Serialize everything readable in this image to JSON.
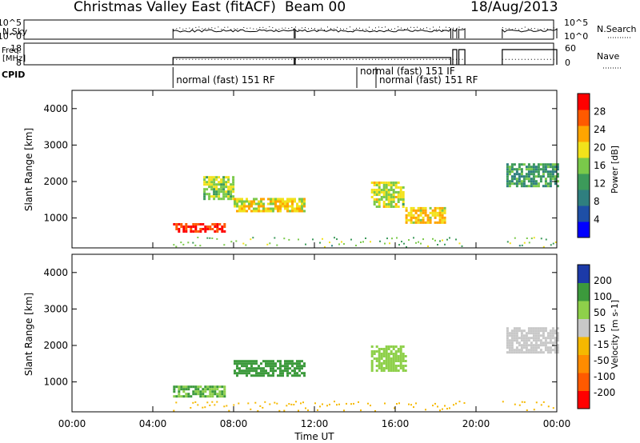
{
  "header": {
    "title": "Christmas Valley East (fitACF)",
    "beam": "Beam 00",
    "date": "18/Aug/2013"
  },
  "colors": {
    "axis": "#000000",
    "power_scale": [
      "#0000ff",
      "#1e4fa6",
      "#2f7f7f",
      "#3c9a5a",
      "#7ac94a",
      "#f2e21b",
      "#ffa500",
      "#ff5a00",
      "#ff0000"
    ],
    "velocity_scale": [
      "#1c3aa8",
      "#3c9a3c",
      "#8ed04a",
      "#c8c8c8",
      "#f5b800",
      "#ff8c00",
      "#ff5a00",
      "#ff0000"
    ]
  },
  "chart_data": [
    {
      "type": "line",
      "name": "N.Sky / N.Search",
      "left_label": "N.Sky",
      "right_label": "N.Search",
      "left_ticks": [
        "10^5",
        "10^0"
      ],
      "right_ticks": [
        "10^5",
        "10^0"
      ],
      "x_range_hours": [
        0,
        24
      ],
      "segments": [
        [
          5.0,
          11.0
        ],
        [
          11.05,
          18.75
        ],
        [
          18.85,
          19.05
        ],
        [
          19.15,
          19.45
        ],
        [
          21.3,
          24.0
        ]
      ]
    },
    {
      "type": "line",
      "name": "Freq / Nave",
      "left_label": "Freq.\n[MHz]",
      "left_ticks": [
        "18",
        "8"
      ],
      "right_label": "Nave",
      "right_ticks": [
        "60",
        "0"
      ],
      "freq_level_mhz": 10.5,
      "nave_level": 48,
      "segments": [
        [
          5.0,
          11.0
        ],
        [
          11.05,
          18.75
        ],
        [
          18.85,
          19.05
        ],
        [
          19.15,
          19.45
        ],
        [
          21.3,
          24.0
        ]
      ]
    },
    {
      "type": "table",
      "name": "CPID",
      "label": "CPID",
      "entries": [
        {
          "start": 5.0,
          "text": "normal (fast) 151 RF"
        },
        {
          "start": 14.1,
          "text": "normal (fast) 151 IF"
        },
        {
          "start": 15.05,
          "text": "normal (fast) 151 RF"
        }
      ]
    },
    {
      "type": "heatmap",
      "name": "Power",
      "ylabel": "Slant Range [km]",
      "ylim": [
        180,
        4500
      ],
      "yticks": [
        1000,
        2000,
        3000,
        4000
      ],
      "colorbar": {
        "label": "Power [dB]",
        "ticks": [
          4,
          8,
          12,
          16,
          20,
          24,
          28
        ],
        "range": [
          0,
          32
        ]
      },
      "features": [
        {
          "t": [
            5.0,
            7.5
          ],
          "r": [
            640,
            860
          ],
          "value": 29
        },
        {
          "t": [
            6.5,
            8.0
          ],
          "r": [
            1500,
            2150
          ],
          "value": 17
        },
        {
          "t": [
            8.0,
            11.5
          ],
          "r": [
            1180,
            1550
          ],
          "value": 20
        },
        {
          "t": [
            14.8,
            16.4
          ],
          "r": [
            1300,
            2000
          ],
          "value": 18
        },
        {
          "t": [
            16.5,
            18.5
          ],
          "r": [
            850,
            1300
          ],
          "value": 21
        },
        {
          "t": [
            21.5,
            24.0
          ],
          "r": [
            1900,
            2500
          ],
          "value": 12
        }
      ]
    },
    {
      "type": "heatmap",
      "name": "Velocity",
      "ylabel": "Slant Range [km]",
      "ylim": [
        180,
        4500
      ],
      "yticks": [
        1000,
        2000,
        3000,
        4000
      ],
      "colorbar": {
        "label": "Velocity [m s-1]",
        "ticks": [
          200,
          100,
          50,
          15,
          -15,
          -50,
          -100,
          -200
        ]
      },
      "features": [
        {
          "t": [
            5.0,
            7.5
          ],
          "r": [
            600,
            900
          ],
          "value": 60
        },
        {
          "t": [
            8.0,
            11.5
          ],
          "r": [
            1200,
            1600
          ],
          "value": 80
        },
        {
          "t": [
            14.8,
            16.5
          ],
          "r": [
            1300,
            2000
          ],
          "value": 40
        },
        {
          "t": [
            21.5,
            24.0
          ],
          "r": [
            1800,
            2500
          ],
          "value": 0
        }
      ]
    }
  ],
  "xaxis": {
    "label": "Time UT",
    "ticks": [
      "00:00",
      "04:00",
      "08:00",
      "12:00",
      "16:00",
      "20:00",
      "00:00"
    ]
  }
}
